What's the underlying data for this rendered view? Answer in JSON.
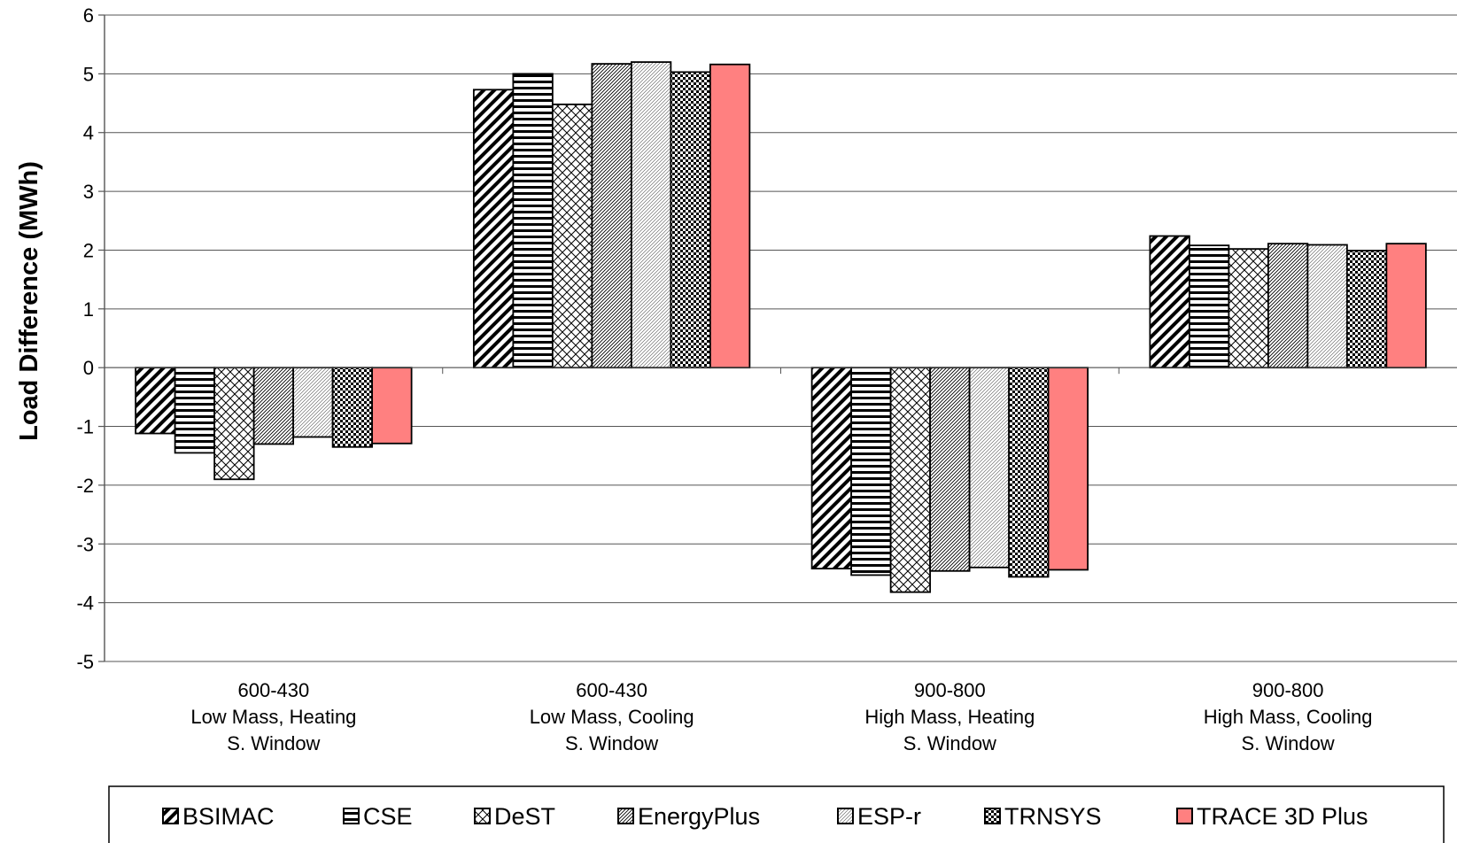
{
  "chart_data": {
    "type": "bar",
    "title": "",
    "xlabel": "",
    "ylabel": "Load Difference (MWh)",
    "ylim": [
      -5,
      6
    ],
    "yticks": [
      6,
      5,
      4,
      3,
      2,
      1,
      0,
      -1,
      -2,
      -3,
      -4,
      -5
    ],
    "grid": true,
    "legend_position": "bottom",
    "categories": [
      [
        "600-430",
        "Low Mass, Heating",
        "S. Window"
      ],
      [
        "600-430",
        "Low Mass, Cooling",
        "S. Window"
      ],
      [
        "900-800",
        "High Mass, Heating",
        "S. Window"
      ],
      [
        "900-800",
        "High Mass, Cooling",
        "S. Window"
      ]
    ],
    "series": [
      {
        "name": "BSIMAC",
        "pattern": "diag-thick",
        "color": "#000000",
        "values": [
          -1.12,
          4.73,
          -3.42,
          2.24
        ]
      },
      {
        "name": "CSE",
        "pattern": "horizontal",
        "color": "#000000",
        "values": [
          -1.45,
          5.0,
          -3.53,
          2.08
        ]
      },
      {
        "name": "DeST",
        "pattern": "crosshatch",
        "color": "#000000",
        "values": [
          -1.9,
          4.48,
          -3.82,
          2.02
        ]
      },
      {
        "name": "EnergyPlus",
        "pattern": "diag-fine",
        "color": "#000000",
        "values": [
          -1.3,
          5.17,
          -3.46,
          2.11
        ]
      },
      {
        "name": "ESP-r",
        "pattern": "diag-light",
        "color": "#000000",
        "values": [
          -1.18,
          5.2,
          -3.4,
          2.09
        ]
      },
      {
        "name": "TRNSYS",
        "pattern": "checker",
        "color": "#000000",
        "values": [
          -1.35,
          5.03,
          -3.56,
          1.99
        ]
      },
      {
        "name": "TRACE 3D Plus",
        "pattern": "solid",
        "color": "#ff8080",
        "values": [
          -1.29,
          5.16,
          -3.44,
          2.11
        ]
      }
    ]
  }
}
